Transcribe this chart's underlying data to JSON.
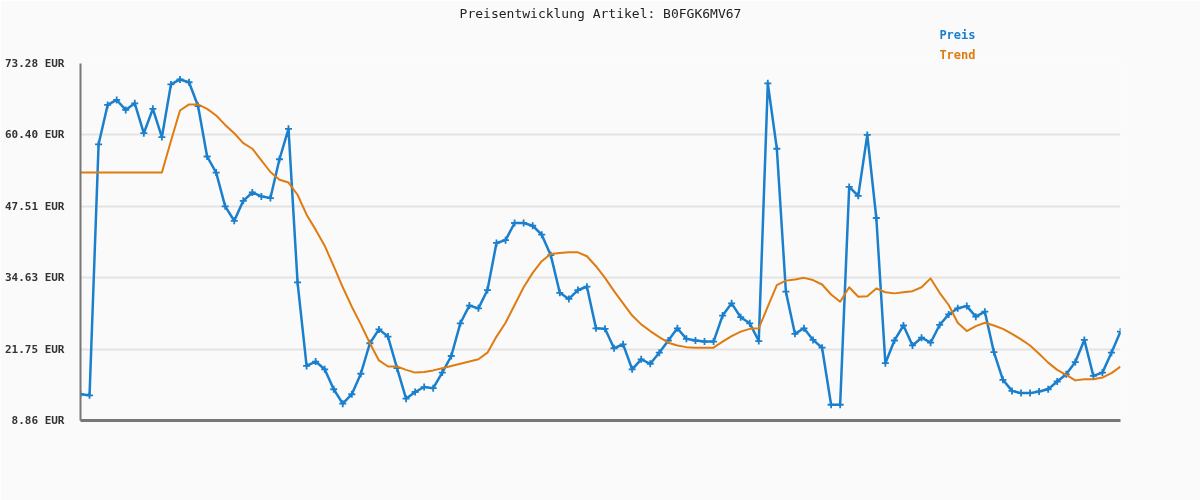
{
  "chart_data": {
    "type": "line",
    "title": "Preisentwicklung Artikel: B0FGK6MV67",
    "categories": [
      null,
      null,
      null,
      null,
      null,
      null,
      null,
      null,
      null,
      null,
      null,
      null,
      null,
      null,
      null,
      null,
      null,
      null,
      null,
      null,
      null,
      null,
      null,
      null,
      null,
      null,
      null,
      null,
      null,
      null,
      null,
      null,
      null,
      null,
      null,
      null,
      null,
      null,
      null,
      null,
      null,
      null,
      null,
      null,
      null,
      null,
      null,
      null,
      null,
      null,
      null,
      null,
      null,
      null,
      null,
      null,
      null,
      null,
      null,
      null,
      null,
      null,
      null,
      null,
      null,
      null,
      null,
      null,
      null,
      null,
      null,
      null,
      null,
      null,
      null,
      null,
      null,
      null,
      null,
      null,
      null,
      null,
      null,
      null,
      null,
      null,
      null,
      null,
      null,
      null,
      null,
      null,
      null,
      null,
      null,
      null,
      null,
      null,
      null,
      null,
      null,
      null,
      null,
      null,
      null,
      null,
      null,
      null,
      null,
      null,
      null,
      null,
      null,
      null,
      null,
      null
    ],
    "series": [
      {
        "name": "Preis",
        "color": "#1a7fcc",
        "marker": "cross",
        "values": [
          13.6,
          13.4,
          58.7,
          65.8,
          66.7,
          64.9,
          66.1,
          60.7,
          65.1,
          60.0,
          69.5,
          70.4,
          69.9,
          65.6,
          56.5,
          53.6,
          47.5,
          44.9,
          48.5,
          50.0,
          49.3,
          49.0,
          56.0,
          61.5,
          33.8,
          18.7,
          19.5,
          18.1,
          14.5,
          11.9,
          13.6,
          17.3,
          22.8,
          25.3,
          24.0,
          18.3,
          12.8,
          14.0,
          14.9,
          14.7,
          17.5,
          20.5,
          26.4,
          29.6,
          29.1,
          32.4,
          40.9,
          41.4,
          44.5,
          44.5,
          44.0,
          42.4,
          38.7,
          31.9,
          30.8,
          32.4,
          33.0,
          25.5,
          25.4,
          21.9,
          22.6,
          18.1,
          19.9,
          19.1,
          21.1,
          23.3,
          25.5,
          23.6,
          23.3,
          23.1,
          23.1,
          27.8,
          30.0,
          27.5,
          26.4,
          23.2,
          69.7,
          57.9,
          32.1,
          24.5,
          25.5,
          23.4,
          22.0,
          11.7,
          11.7,
          51.0,
          49.4,
          60.4,
          45.4,
          19.2,
          23.3,
          26.0,
          22.4,
          23.8,
          22.9,
          26.1,
          28.0,
          29.1,
          29.5,
          27.6,
          28.5,
          21.2,
          16.2,
          14.2,
          13.8,
          13.8,
          14.1,
          14.5,
          15.9,
          17.2,
          19.4,
          23.4,
          16.9,
          17.5,
          21.1,
          24.9
        ]
      },
      {
        "name": "Trend",
        "color": "#e07b12",
        "marker": "none",
        "values": [
          53.6,
          53.6,
          53.6,
          53.6,
          53.6,
          53.6,
          53.6,
          53.6,
          53.6,
          53.6,
          59.3,
          64.8,
          65.9,
          65.9,
          65.1,
          63.9,
          62.2,
          60.7,
          58.9,
          57.9,
          55.8,
          53.7,
          52.3,
          51.8,
          49.6,
          46.0,
          43.3,
          40.4,
          36.7,
          32.9,
          29.4,
          26.2,
          22.8,
          19.7,
          18.6,
          18.6,
          18.0,
          17.5,
          17.6,
          17.9,
          18.3,
          18.7,
          19.1,
          19.5,
          19.9,
          21.1,
          24.0,
          26.5,
          29.7,
          32.9,
          35.5,
          37.6,
          38.9,
          39.1,
          39.2,
          39.2,
          38.5,
          36.7,
          34.6,
          32.2,
          30.0,
          27.8,
          26.2,
          25.0,
          23.9,
          22.9,
          22.4,
          22.1,
          22.0,
          22.0,
          22.0,
          23.1,
          24.1,
          24.9,
          25.4,
          25.5,
          29.4,
          33.3,
          34.1,
          34.3,
          34.6,
          34.2,
          33.4,
          31.6,
          30.3,
          32.9,
          31.2,
          31.3,
          32.7,
          32.0,
          31.8,
          32.0,
          32.2,
          32.9,
          34.5,
          31.9,
          29.7,
          26.5,
          25.0,
          25.9,
          26.5,
          26.0,
          25.4,
          24.5,
          23.5,
          22.4,
          20.9,
          19.3,
          18.0,
          17.1,
          16.1,
          16.3,
          16.3,
          16.6,
          17.4,
          18.6
        ]
      }
    ],
    "ylim": [
      8.86,
      73.28
    ],
    "yticks": [
      {
        "value": 8.86,
        "label": "8.86 EUR"
      },
      {
        "value": 21.75,
        "label": "21.75 EUR"
      },
      {
        "value": 34.63,
        "label": "34.63 EUR"
      },
      {
        "value": 47.51,
        "label": "47.51 EUR"
      },
      {
        "value": 60.4,
        "label": "60.40 EUR"
      },
      {
        "value": 73.28,
        "label": "73.28 EUR"
      }
    ],
    "grid": "y",
    "legend": "top right",
    "tick_labels": "y"
  }
}
